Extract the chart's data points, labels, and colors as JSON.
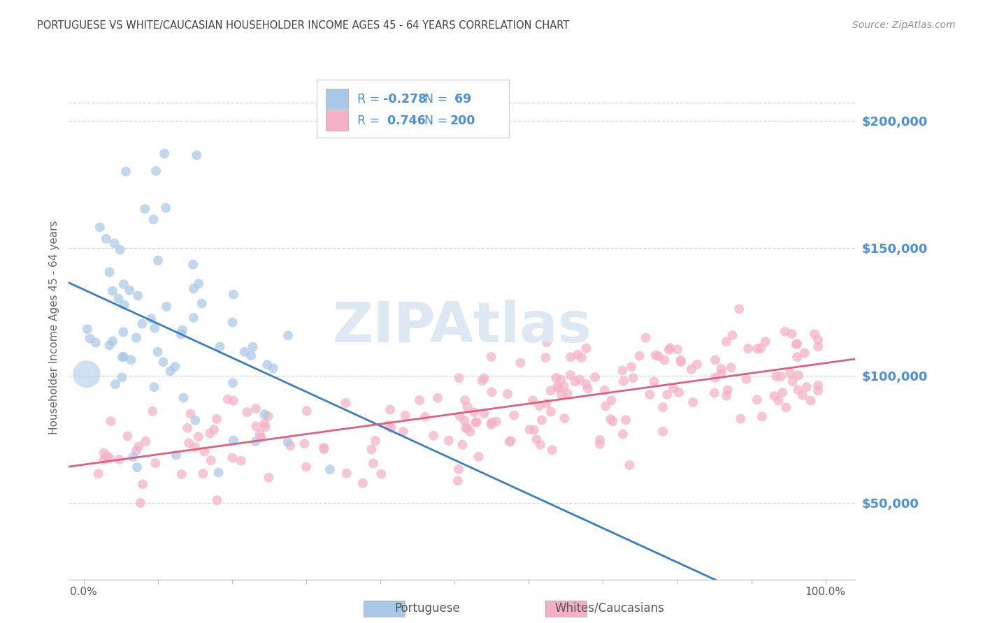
{
  "title": "PORTUGUESE VS WHITE/CAUCASIAN HOUSEHOLDER INCOME AGES 45 - 64 YEARS CORRELATION CHART",
  "source": "Source: ZipAtlas.com",
  "ylabel": "Householder Income Ages 45 - 64 years",
  "ytick_labels": [
    "$50,000",
    "$100,000",
    "$150,000",
    "$200,000"
  ],
  "ytick_values": [
    50000,
    100000,
    150000,
    200000
  ],
  "ymin": 20000,
  "ymax": 218000,
  "xmin": -0.02,
  "xmax": 1.04,
  "portuguese_R": -0.278,
  "portuguese_N": 69,
  "caucasian_R": 0.746,
  "caucasian_N": 200,
  "portuguese_color": "#a8c8e8",
  "portuguese_line_color": "#3a7fc1",
  "caucasian_color": "#f5b0c5",
  "caucasian_line_color": "#e0607a",
  "title_color": "#404040",
  "source_color": "#909090",
  "axis_label_color": "#4a90d9",
  "watermark": "ZIPAtlas",
  "watermark_color": "#dde8f2",
  "background_color": "#ffffff",
  "grid_color": "#c8d8e8",
  "legend_text_color": "#4a90d9",
  "legend_label_color": "#333333"
}
